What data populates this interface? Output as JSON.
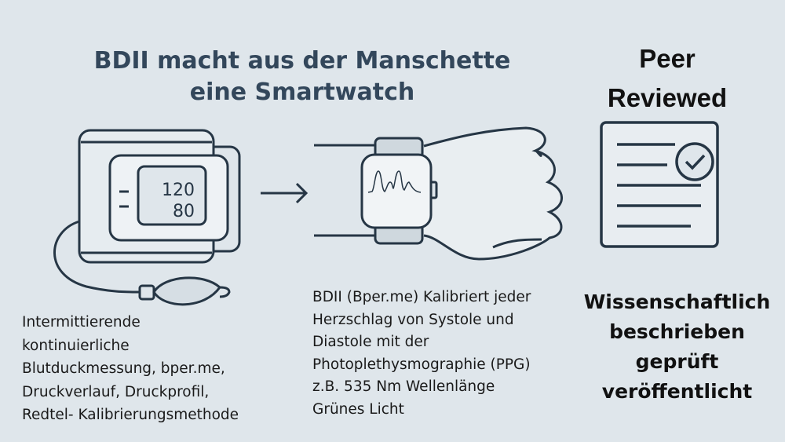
{
  "title": {
    "line1": "BDII macht aus der Manschette",
    "line2": "eine Smartwatch"
  },
  "peer_review": {
    "line1": "Peer",
    "line2": "Reviewed"
  },
  "monitor_display": {
    "systolic": "120",
    "diastolic": "80"
  },
  "left_text": [
    "Intermittierende",
    "kontinuierliche",
    "Blutduckmessung, bper.me,",
    "Druckverlauf, Druckprofil,",
    "Redtel- Kalibrierungsmethode"
  ],
  "middle_text": [
    "BDII (Bper.me) Kalibriert jeder",
    "Herzschlag von Systole und",
    "Diastole mit der",
    "Photoplethysmographie (PPG)",
    "z.B. 535 Nm Wellenlänge",
    "Grünes Licht"
  ],
  "right_text": [
    "Wissenschaftlich",
    "beschrieben",
    "geprüft",
    "veröffentlicht"
  ],
  "colors": {
    "background": "#dfe6eb",
    "line": "#263645",
    "title": "#33475b"
  },
  "icons": [
    "blood-pressure-cuff-icon",
    "arrow-right-icon",
    "smartwatch-wrist-icon",
    "document-check-icon"
  ]
}
